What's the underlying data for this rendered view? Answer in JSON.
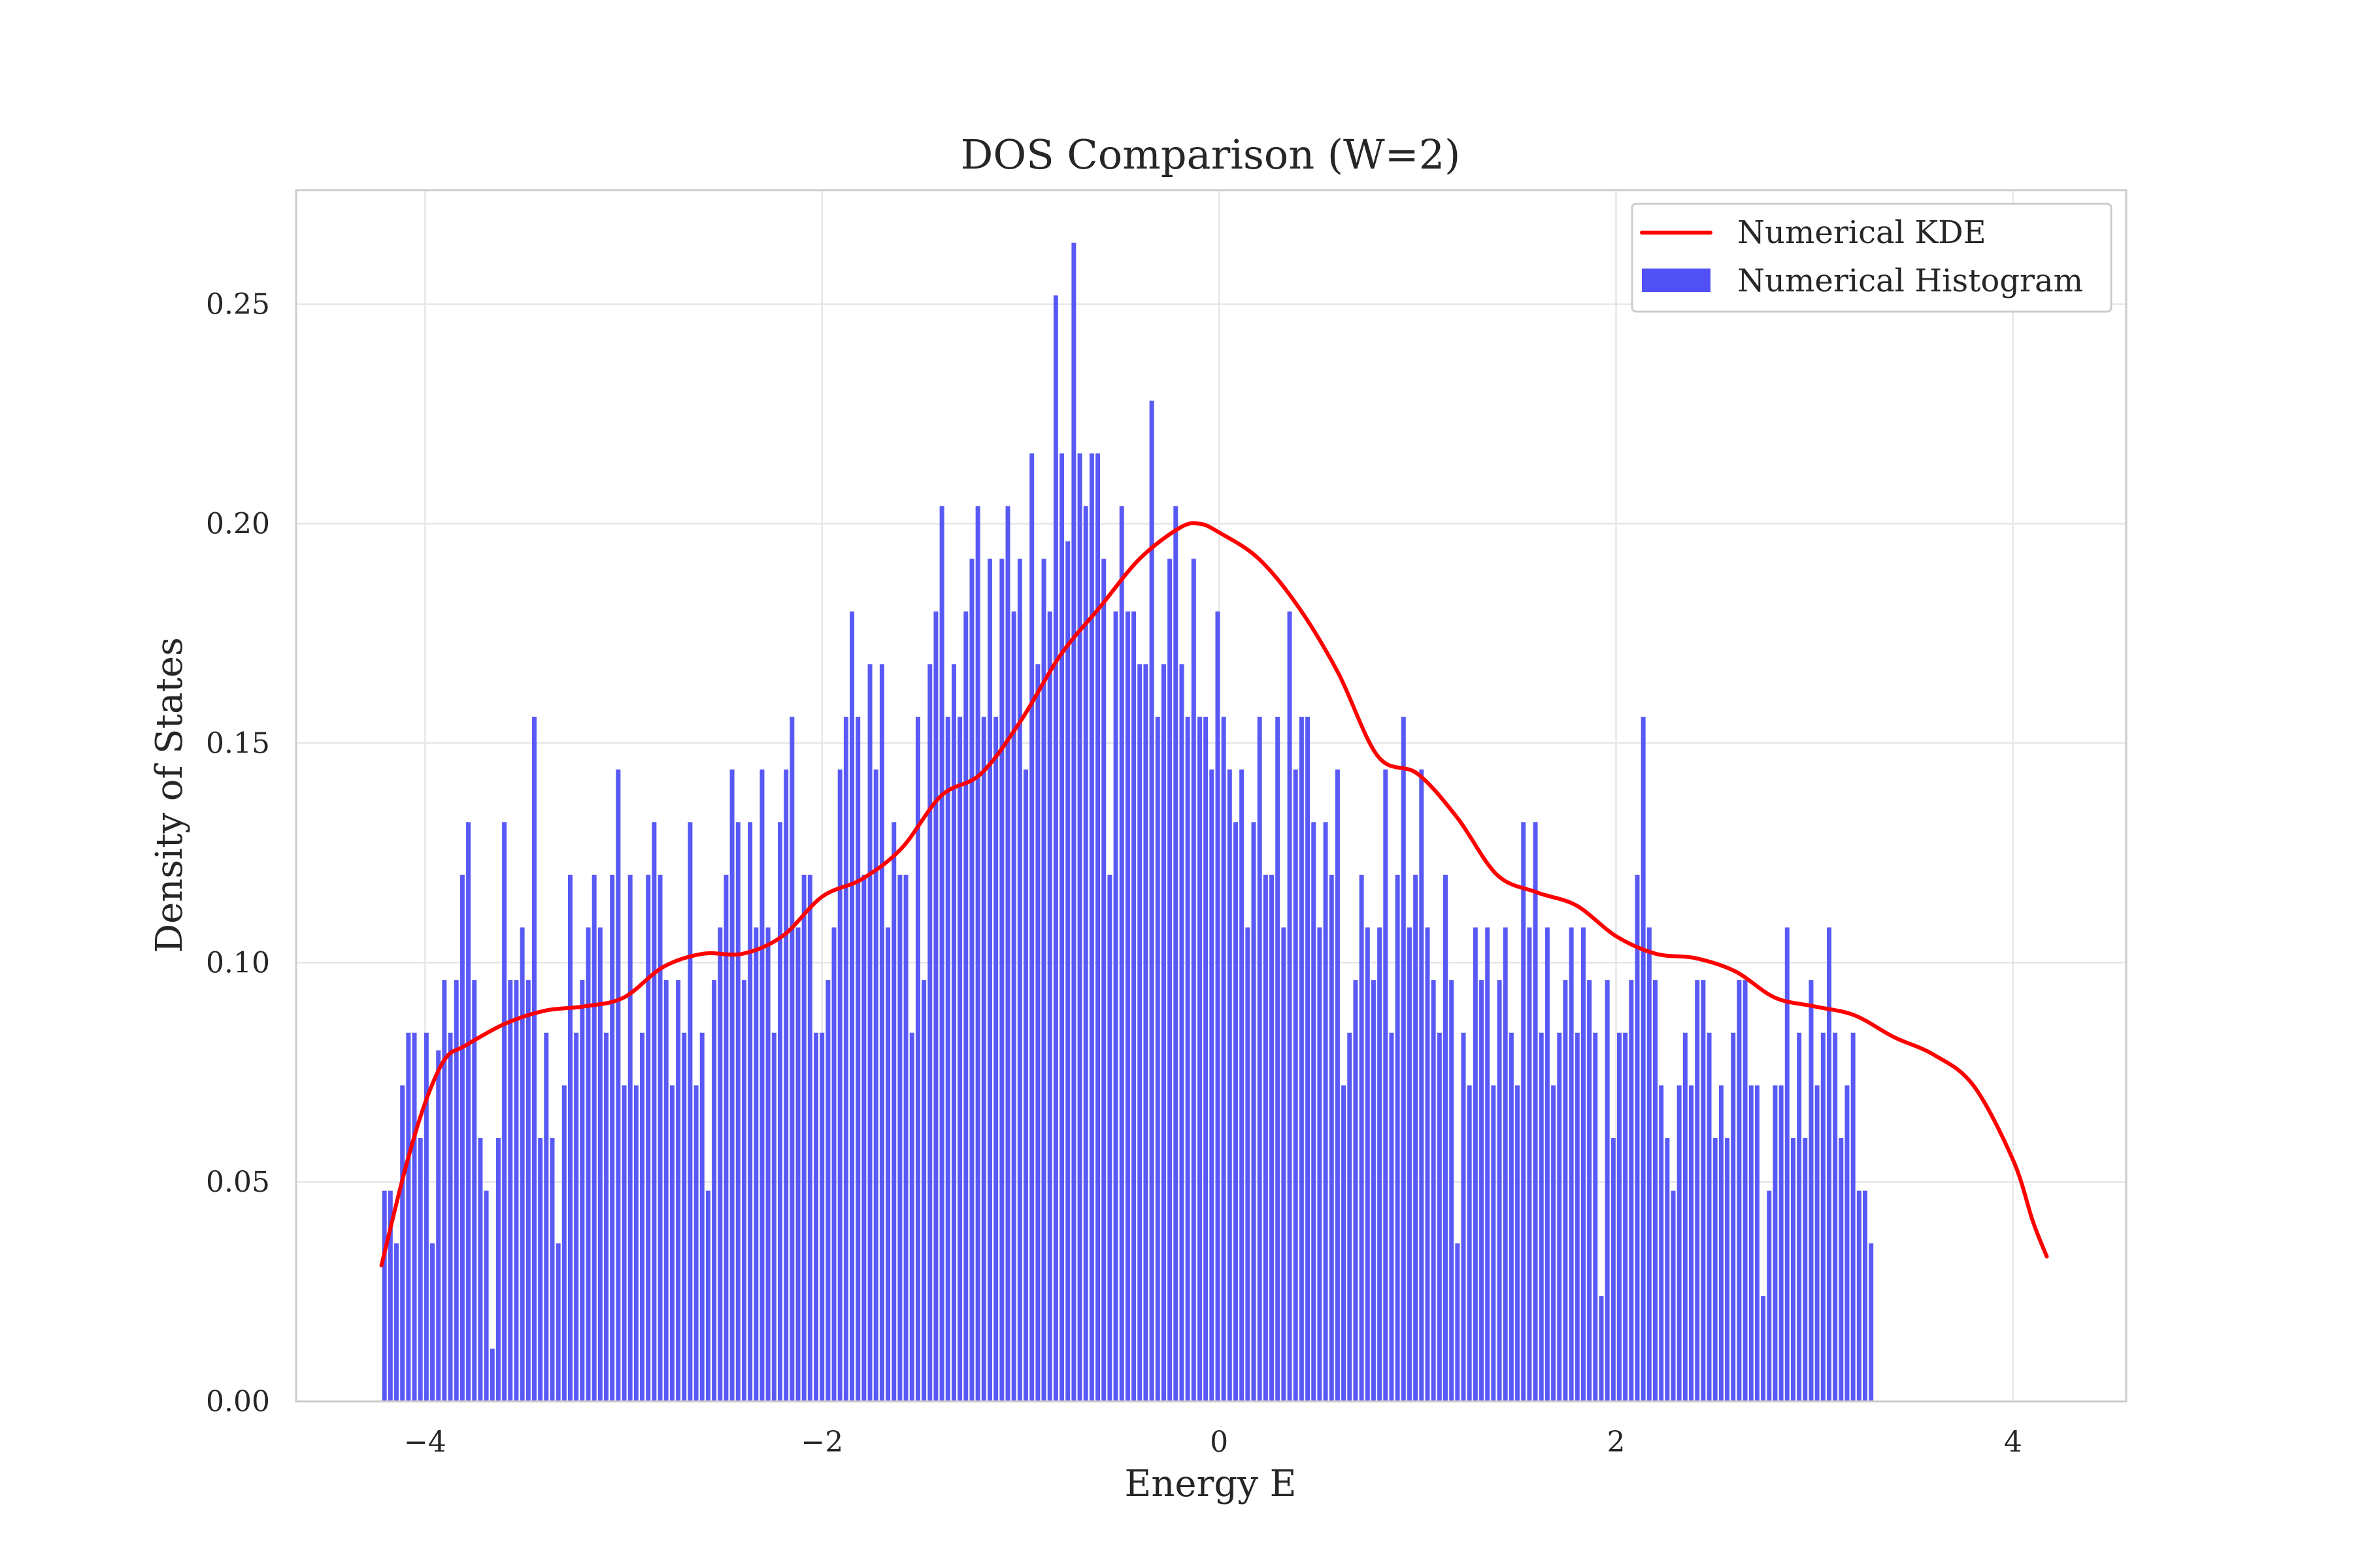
{
  "colors": {
    "histogram": "#5050f5",
    "kde": "#ff0000",
    "grid": "#e6e6e6",
    "frame": "#cccccc",
    "text": "#262626"
  },
  "chart_data": {
    "type": "bar",
    "title": "DOS Comparison (W=2)",
    "xlabel": "Energy E",
    "ylabel": "Density of States",
    "xlim": [
      -4.65,
      4.57
    ],
    "ylim": [
      0,
      0.276
    ],
    "xticks": [
      -4,
      -2,
      0,
      2,
      4
    ],
    "xtick_labels": [
      "−4",
      "−2",
      "0",
      "2",
      "4"
    ],
    "yticks": [
      0.0,
      0.05,
      0.1,
      0.15,
      0.2,
      0.25
    ],
    "ytick_labels": [
      "0.00",
      "0.05",
      "0.10",
      "0.15",
      "0.20",
      "0.25"
    ],
    "grid": true,
    "legend_position": "top-right",
    "legend": [
      "Numerical KDE",
      "Numerical Histogram"
    ],
    "histogram": {
      "name": "Numerical Histogram",
      "bin_start": -4.22,
      "bin_width": 0.0302,
      "values": [
        0.048,
        0.048,
        0.036,
        0.072,
        0.084,
        0.084,
        0.06,
        0.084,
        0.036,
        0.08,
        0.096,
        0.084,
        0.096,
        0.12,
        0.132,
        0.096,
        0.06,
        0.048,
        0.012,
        0.06,
        0.132,
        0.096,
        0.096,
        0.108,
        0.096,
        0.156,
        0.06,
        0.084,
        0.06,
        0.036,
        0.072,
        0.12,
        0.084,
        0.096,
        0.108,
        0.12,
        0.108,
        0.084,
        0.12,
        0.144,
        0.072,
        0.12,
        0.072,
        0.084,
        0.12,
        0.132,
        0.12,
        0.096,
        0.072,
        0.096,
        0.084,
        0.132,
        0.072,
        0.084,
        0.048,
        0.096,
        0.108,
        0.12,
        0.144,
        0.132,
        0.096,
        0.132,
        0.108,
        0.144,
        0.108,
        0.084,
        0.132,
        0.144,
        0.156,
        0.108,
        0.12,
        0.12,
        0.084,
        0.084,
        0.096,
        0.108,
        0.144,
        0.156,
        0.18,
        0.156,
        0.12,
        0.168,
        0.144,
        0.168,
        0.108,
        0.132,
        0.12,
        0.12,
        0.084,
        0.156,
        0.096,
        0.168,
        0.18,
        0.204,
        0.156,
        0.168,
        0.156,
        0.18,
        0.192,
        0.204,
        0.156,
        0.192,
        0.156,
        0.192,
        0.204,
        0.18,
        0.192,
        0.144,
        0.216,
        0.168,
        0.192,
        0.18,
        0.252,
        0.216,
        0.196,
        0.264,
        0.216,
        0.204,
        0.216,
        0.216,
        0.192,
        0.12,
        0.18,
        0.204,
        0.18,
        0.18,
        0.168,
        0.168,
        0.228,
        0.156,
        0.168,
        0.192,
        0.204,
        0.168,
        0.156,
        0.192,
        0.156,
        0.156,
        0.144,
        0.18,
        0.156,
        0.144,
        0.132,
        0.144,
        0.108,
        0.132,
        0.156,
        0.12,
        0.12,
        0.156,
        0.108,
        0.18,
        0.144,
        0.156,
        0.156,
        0.132,
        0.108,
        0.132,
        0.12,
        0.144,
        0.072,
        0.084,
        0.096,
        0.12,
        0.108,
        0.096,
        0.108,
        0.144,
        0.084,
        0.12,
        0.156,
        0.108,
        0.12,
        0.144,
        0.108,
        0.096,
        0.084,
        0.12,
        0.096,
        0.036,
        0.084,
        0.072,
        0.108,
        0.096,
        0.108,
        0.072,
        0.096,
        0.108,
        0.084,
        0.072,
        0.132,
        0.108,
        0.132,
        0.084,
        0.108,
        0.072,
        0.084,
        0.096,
        0.108,
        0.084,
        0.108,
        0.096,
        0.084,
        0.024,
        0.096,
        0.06,
        0.084,
        0.084,
        0.096,
        0.12,
        0.156,
        0.108,
        0.096,
        0.072,
        0.06,
        0.048,
        0.072,
        0.084,
        0.072,
        0.096,
        0.096,
        0.084,
        0.06,
        0.072,
        0.06,
        0.084,
        0.096,
        0.096,
        0.072,
        0.072,
        0.024,
        0.048,
        0.072,
        0.072,
        0.108,
        0.06,
        0.084,
        0.06,
        0.096,
        0.072,
        0.084,
        0.108,
        0.084,
        0.06,
        0.072,
        0.084,
        0.048,
        0.048,
        0.036
      ]
    },
    "kde": {
      "name": "Numerical KDE",
      "x": [
        -4.22,
        -4.1,
        -4.0,
        -3.9,
        -3.8,
        -3.6,
        -3.4,
        -3.2,
        -3.0,
        -2.8,
        -2.6,
        -2.4,
        -2.2,
        -2.0,
        -1.8,
        -1.6,
        -1.4,
        -1.2,
        -1.0,
        -0.8,
        -0.6,
        -0.4,
        -0.2,
        -0.1,
        0.0,
        0.2,
        0.4,
        0.6,
        0.8,
        1.0,
        1.2,
        1.4,
        1.6,
        1.8,
        2.0,
        2.2,
        2.4,
        2.6,
        2.8,
        3.0,
        3.2,
        3.4,
        3.6,
        3.8,
        4.0,
        4.1,
        4.17
      ],
      "y": [
        0.031,
        0.053,
        0.068,
        0.078,
        0.081,
        0.086,
        0.089,
        0.09,
        0.092,
        0.099,
        0.102,
        0.102,
        0.106,
        0.115,
        0.119,
        0.126,
        0.138,
        0.143,
        0.155,
        0.17,
        0.181,
        0.192,
        0.199,
        0.2,
        0.198,
        0.192,
        0.181,
        0.166,
        0.147,
        0.143,
        0.133,
        0.12,
        0.116,
        0.113,
        0.106,
        0.102,
        0.101,
        0.098,
        0.092,
        0.09,
        0.088,
        0.083,
        0.079,
        0.072,
        0.055,
        0.041,
        0.033
      ]
    }
  }
}
